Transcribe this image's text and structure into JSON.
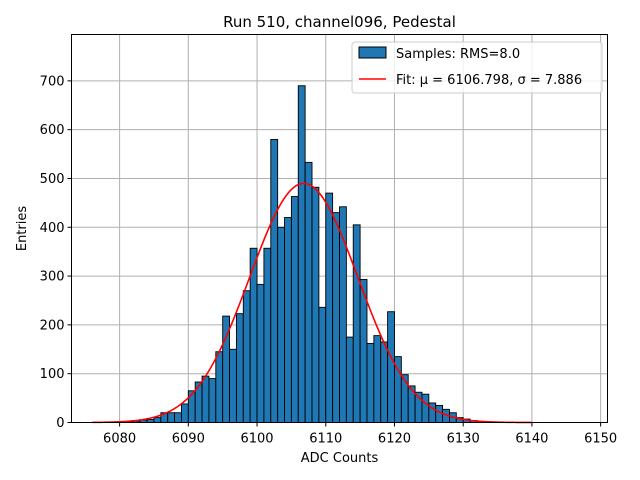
{
  "chart_data": {
    "type": "bar",
    "title": "Run 510, channel096, Pedestal",
    "xlabel": "ADC Counts",
    "ylabel": "Entries",
    "xlim": [
      6073,
      6151
    ],
    "ylim": [
      0,
      795
    ],
    "grid": true,
    "legend_position": "top-right",
    "x_ticks": [
      6080,
      6090,
      6100,
      6110,
      6120,
      6130,
      6140,
      6150
    ],
    "y_ticks": [
      0,
      100,
      200,
      300,
      400,
      500,
      600,
      700
    ],
    "bin_width": 1,
    "histogram": {
      "name": "Samples: RMS=8.0",
      "color": "#1f77b4",
      "bin_starts": [
        6078,
        6079,
        6080,
        6081,
        6082,
        6083,
        6084,
        6085,
        6086,
        6087,
        6088,
        6089,
        6090,
        6091,
        6092,
        6093,
        6094,
        6095,
        6096,
        6097,
        6098,
        6099,
        6100,
        6101,
        6102,
        6103,
        6104,
        6105,
        6106,
        6107,
        6108,
        6109,
        6110,
        6111,
        6112,
        6113,
        6114,
        6115,
        6116,
        6117,
        6118,
        6119,
        6120,
        6121,
        6122,
        6123,
        6124,
        6125,
        6126,
        6127,
        6128,
        6129,
        6130,
        6131,
        6132
      ],
      "counts": [
        1,
        1,
        2,
        2,
        3,
        5,
        6,
        10,
        20,
        20,
        20,
        38,
        65,
        83,
        95,
        90,
        145,
        218,
        150,
        223,
        270,
        357,
        283,
        357,
        580,
        400,
        420,
        463,
        690,
        533,
        482,
        236,
        470,
        430,
        442,
        175,
        405,
        293,
        162,
        178,
        165,
        227,
        135,
        98,
        75,
        62,
        58,
        40,
        35,
        27,
        20,
        10,
        7,
        4,
        2
      ]
    },
    "fit": {
      "name": "Fit: μ = 6106.798, σ = 7.886",
      "color": "#ff0000",
      "mu": 6106.798,
      "sigma": 7.886,
      "amplitude": 490,
      "x_range": [
        6076,
        6140
      ]
    }
  }
}
